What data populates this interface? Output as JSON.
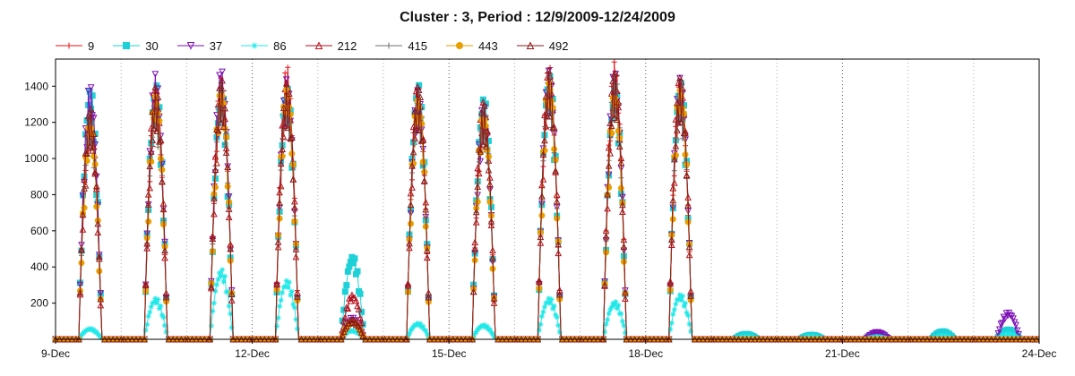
{
  "chart_data": {
    "type": "line",
    "title": "Cluster : 3, Period : 12/9/2009-12/24/2009",
    "xlabel": "",
    "ylabel": "",
    "x_ticks": [
      "9-Dec",
      "12-Dec",
      "15-Dec",
      "18-Dec",
      "21-Dec",
      "24-Dec"
    ],
    "x_tick_days": [
      0,
      3,
      6,
      9,
      12,
      15
    ],
    "xlim": [
      0,
      15
    ],
    "ylim": [
      0,
      1550
    ],
    "y_ticks": [
      200,
      400,
      600,
      800,
      1000,
      1200,
      1400
    ],
    "legend_position": "top-left",
    "grid": "vertical dotted at day boundaries",
    "days": [
      0.5,
      1.5,
      2.5,
      3.5,
      4.5,
      5.5,
      6.5,
      7.5,
      8.5,
      9.5,
      10.5,
      11.5,
      12.5,
      13.5,
      14.5
    ],
    "series": [
      {
        "name": "9",
        "color": "#e8121a",
        "marker": "plus",
        "daily_peak": [
          1300,
          1380,
          1450,
          1520,
          110,
          1400,
          1300,
          1520,
          1540,
          1440,
          0,
          0,
          0,
          0,
          0
        ]
      },
      {
        "name": "30",
        "color": "#1ed0d8",
        "marker": "square",
        "daily_peak": [
          1420,
          1440,
          1400,
          1420,
          470,
          1440,
          1370,
          1490,
          1420,
          1450,
          30,
          25,
          30,
          45,
          55
        ]
      },
      {
        "name": "37",
        "color": "#7d11b5",
        "marker": "triangle-down",
        "daily_peak": [
          1420,
          1480,
          1510,
          1450,
          120,
          1390,
          1310,
          1500,
          1500,
          1460,
          0,
          0,
          40,
          0,
          150
        ]
      },
      {
        "name": "86",
        "color": "#20e8e8",
        "marker": "star",
        "daily_peak": [
          60,
          230,
          390,
          330,
          50,
          90,
          80,
          230,
          210,
          250,
          15,
          15,
          15,
          20,
          30
        ]
      },
      {
        "name": "212",
        "color": "#b5101e",
        "marker": "triangle-up",
        "daily_peak": [
          1250,
          1420,
          1430,
          1440,
          250,
          1430,
          1340,
          1510,
          1500,
          1480,
          0,
          0,
          0,
          0,
          0
        ]
      },
      {
        "name": "415",
        "color": "#707070",
        "marker": "plus",
        "daily_peak": [
          1260,
          1350,
          1430,
          1400,
          90,
          1380,
          1290,
          1480,
          1470,
          1400,
          0,
          0,
          0,
          0,
          0
        ]
      },
      {
        "name": "443",
        "color": "#e8a000",
        "marker": "circle",
        "daily_peak": [
          1230,
          1390,
          1420,
          1430,
          100,
          1370,
          1280,
          1470,
          1410,
          1430,
          0,
          0,
          0,
          0,
          0
        ]
      },
      {
        "name": "492",
        "color": "#8b1a1a",
        "marker": "triangle-up",
        "daily_peak": [
          1280,
          1400,
          1440,
          1420,
          110,
          1400,
          1300,
          1490,
          1480,
          1450,
          0,
          0,
          0,
          0,
          0
        ]
      }
    ]
  }
}
